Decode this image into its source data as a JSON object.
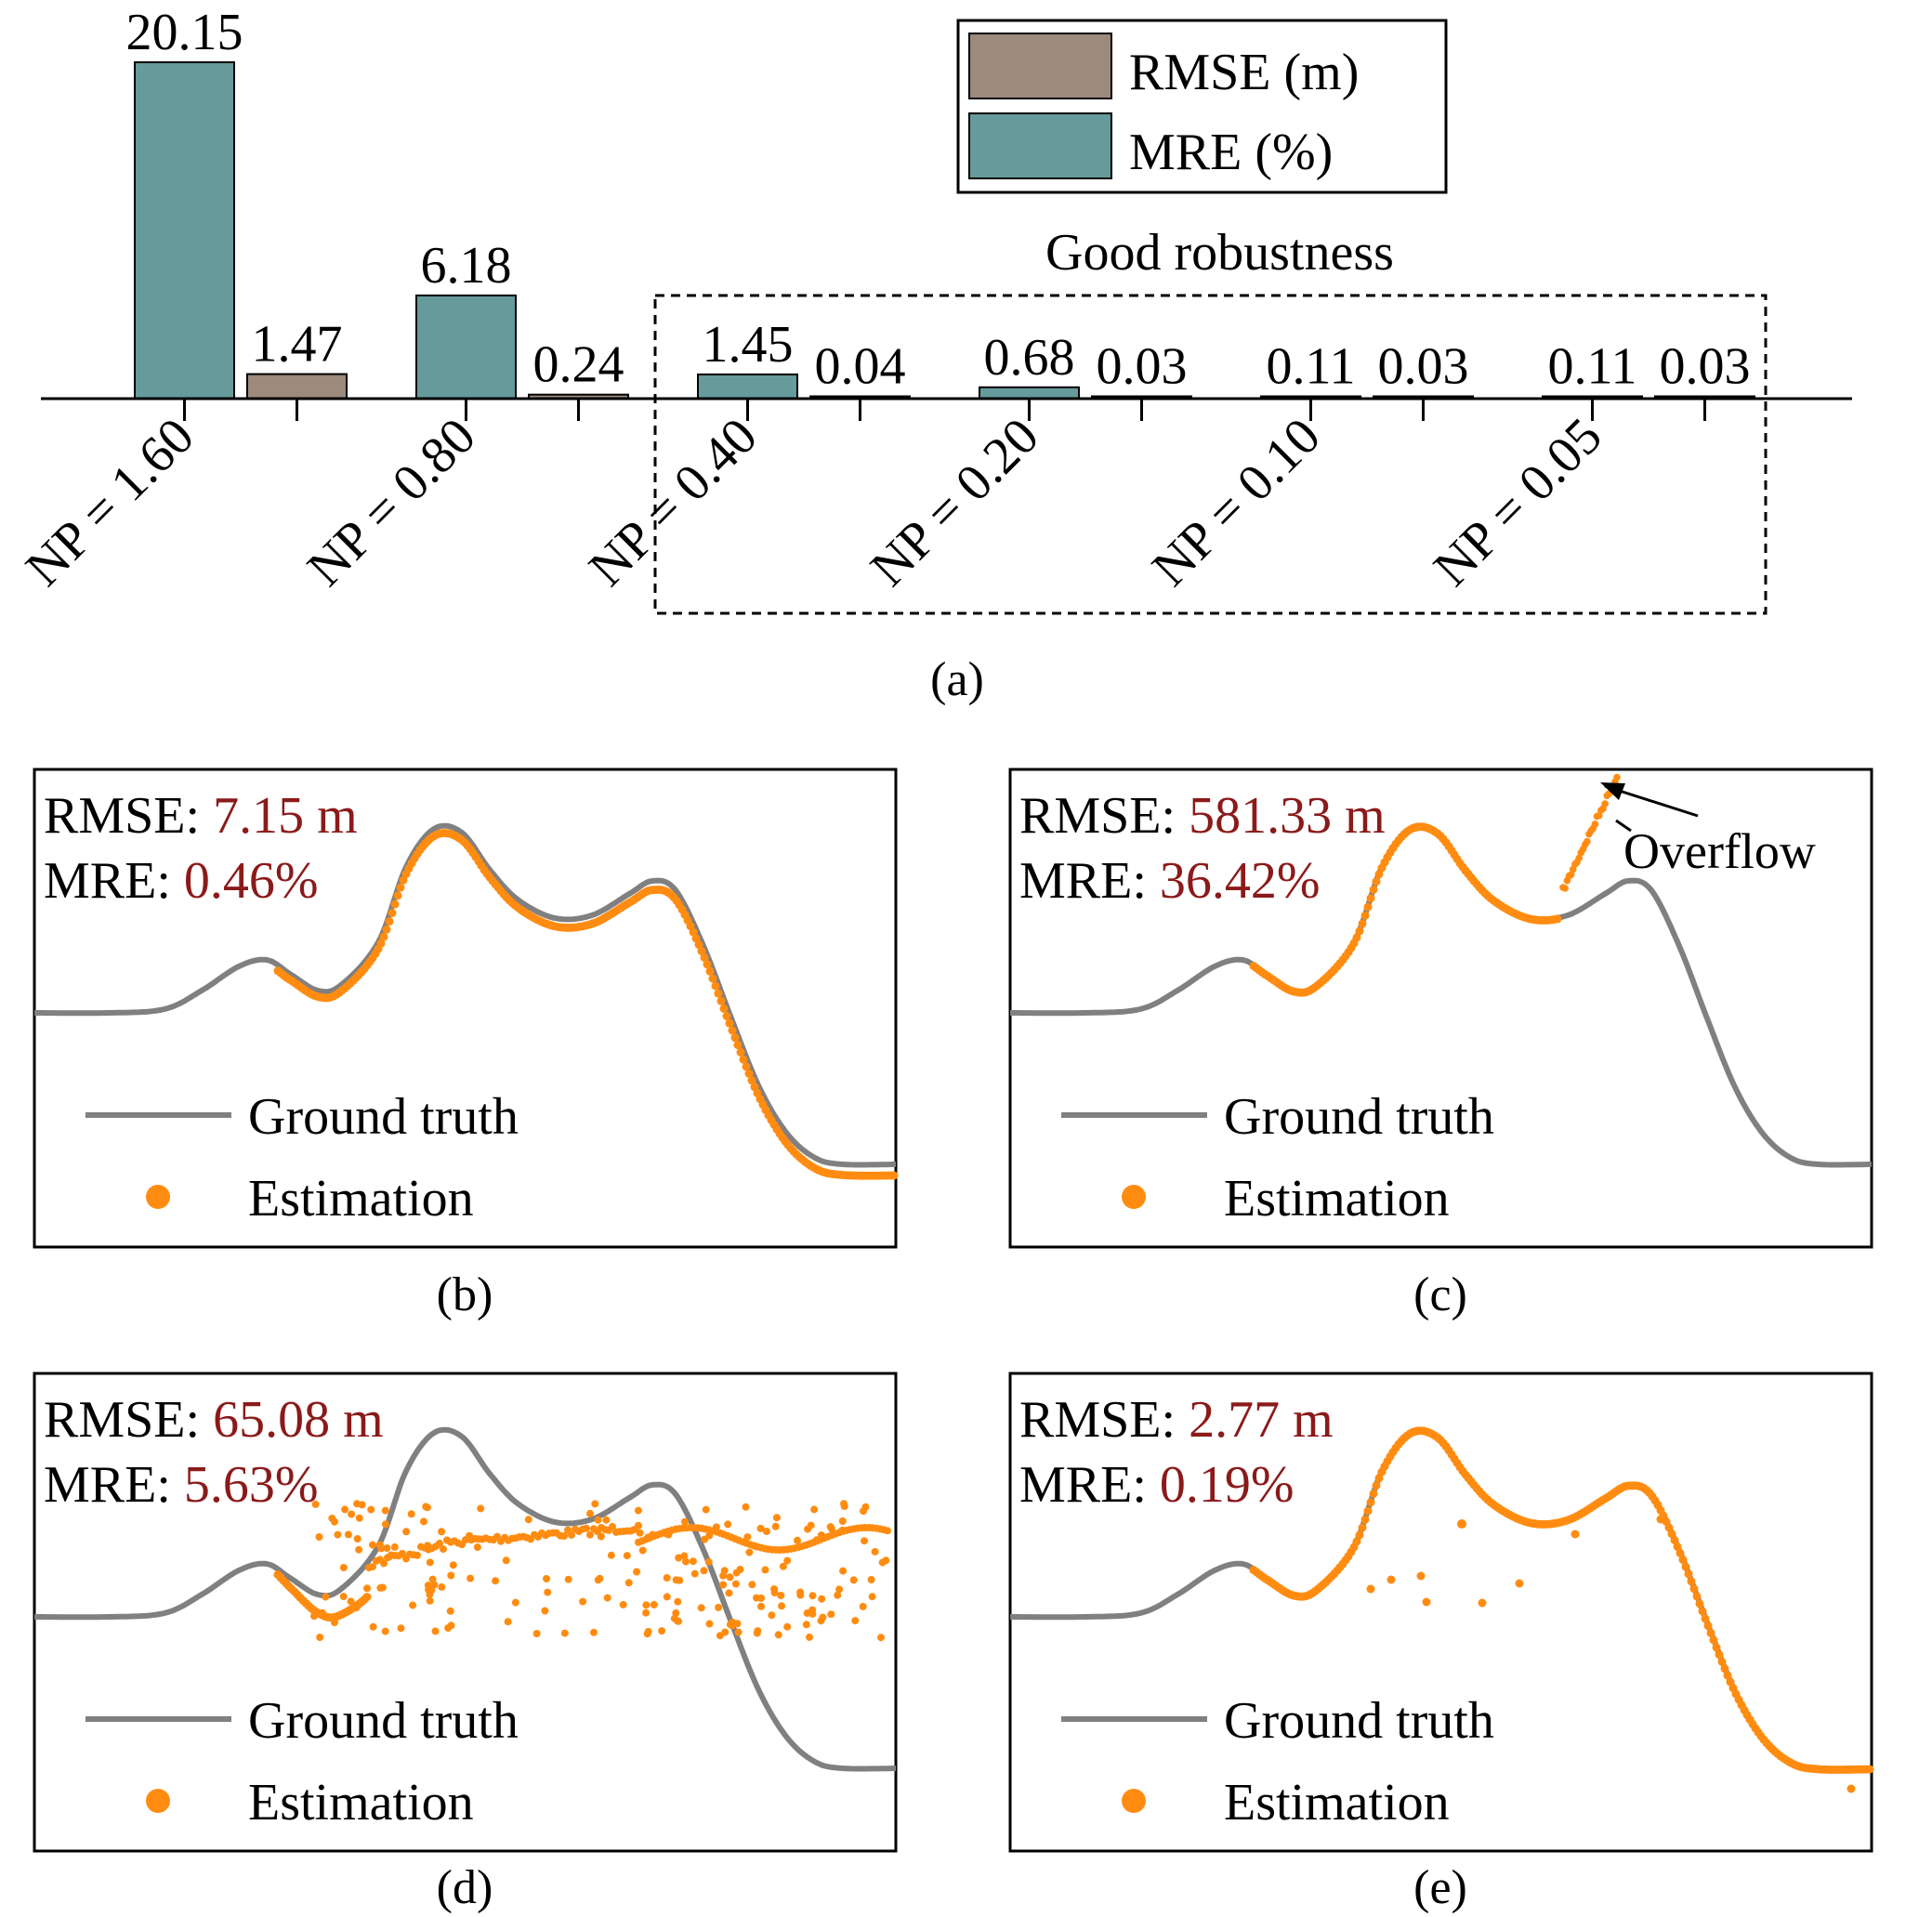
{
  "chart_data": [
    {
      "type": "bar",
      "panel_label": "(a)",
      "categories": [
        "NP = 1.60",
        "NP = 0.80",
        "NP = 0.40",
        "NP = 0.20",
        "NP = 0.10",
        "NP = 0.05"
      ],
      "series": [
        {
          "name": "MRE (%)",
          "color": "#669a9b",
          "values": [
            20.15,
            6.18,
            1.45,
            0.68,
            0.11,
            0.11
          ]
        },
        {
          "name": "RMSE (m)",
          "color": "#9c8a7d",
          "values": [
            1.47,
            0.24,
            0.04,
            0.03,
            0.03,
            0.03
          ]
        }
      ],
      "value_labels": {
        "MRE (%)": [
          "20.15",
          "6.18",
          "1.45",
          "0.68",
          "0.11",
          "0.11"
        ],
        "RMSE (m)": [
          "1.47",
          "0.24",
          "0.04",
          "0.03",
          "0.03",
          "0.03"
        ]
      },
      "legend_order": [
        "RMSE (m)",
        "MRE (%)"
      ],
      "legend_position": "top-right",
      "annotation": {
        "text": "Good robustness",
        "first_category": 2,
        "last_category": 5
      },
      "ylim": [
        0,
        20.15
      ]
    },
    {
      "type": "line",
      "panel_label": "(b)",
      "metrics": {
        "rmse_label": "RMSE: ",
        "rmse_value": "7.15 m",
        "mre_label": "MRE: ",
        "mre_value": "0.46%"
      },
      "legend": {
        "line": "Ground truth",
        "points": "Estimation"
      },
      "estimation_mode": "offset"
    },
    {
      "type": "line",
      "panel_label": "(c)",
      "metrics": {
        "rmse_label": "RMSE: ",
        "rmse_value": "581.33 m",
        "mre_label": "MRE: ",
        "mre_value": "36.42%"
      },
      "legend": {
        "line": "Ground truth",
        "points": "Estimation"
      },
      "annotation": "Overflow",
      "estimation_mode": "overflow"
    },
    {
      "type": "line",
      "panel_label": "(d)",
      "metrics": {
        "rmse_label": "RMSE: ",
        "rmse_value": "65.08 m",
        "mre_label": "MRE: ",
        "mre_value": "5.63%"
      },
      "legend": {
        "line": "Ground truth",
        "points": "Estimation"
      },
      "estimation_mode": "scatter"
    },
    {
      "type": "line",
      "panel_label": "(e)",
      "metrics": {
        "rmse_label": "RMSE: ",
        "rmse_value": "2.77 m",
        "mre_label": "MRE: ",
        "mre_value": "0.19%"
      },
      "legend": {
        "line": "Ground truth",
        "points": "Estimation"
      },
      "estimation_mode": "close"
    }
  ],
  "colors": {
    "ground_truth": "#808080",
    "estimation": "#ff8c10",
    "metric_value": "#8b1a1a"
  }
}
